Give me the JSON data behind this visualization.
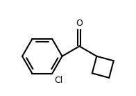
{
  "background_color": "#ffffff",
  "line_color": "#000000",
  "bond_width": 1.5,
  "text_color": "#000000",
  "cl_label": "Cl",
  "o_label": "O",
  "font_size": 9,
  "xlim": [
    -0.3,
    4.2
  ],
  "ylim": [
    -2.2,
    1.8
  ]
}
